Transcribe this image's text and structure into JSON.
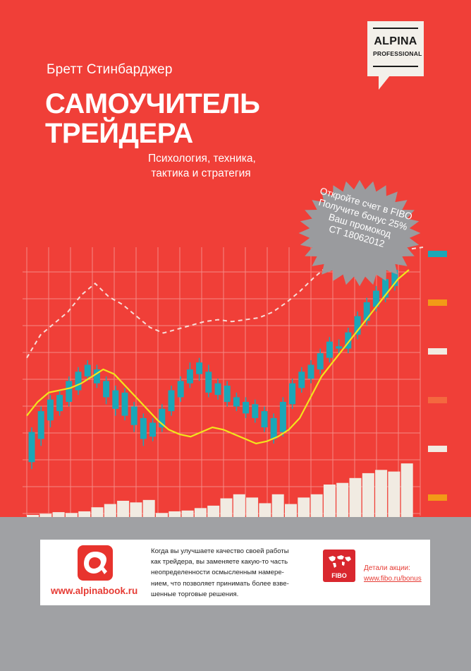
{
  "book": {
    "author": "Бретт Стинбарджер",
    "title_line1": "САМОУЧИТЕЛЬ",
    "title_line2": "ТРЕЙДЕРА",
    "subtitle_line1": "Психология, техника,",
    "subtitle_line2": "тактика и стратегия"
  },
  "publisher_logo": {
    "brand": "ALPINA",
    "sub": "PROFESSIONAL"
  },
  "promo_burst": {
    "line1": "Откройте счет в FIBO",
    "line2": "Получите бонус 25%",
    "line3": "Ваш промокод",
    "line4": "СТ 18062012"
  },
  "info_strip": {
    "site": "www.alpinabook.ru",
    "text_lines": [
      "Когда вы улучшаете качество своей работы",
      "как трейдера, вы заменяете какую-то часть",
      "неопределенности осмысленным намере-",
      "нием, что позволяет принимать более взве-",
      "шенные торговые решения."
    ],
    "fibo_label": "FIBO",
    "details_label": "Детали акции:",
    "details_url": "www.fibo.ru/bonus"
  },
  "colors": {
    "cover_red": "#f03f38",
    "candle_teal": "#1aa7b8",
    "yellow_line": "#f2e51b",
    "volume_beige": "#f1ebe2",
    "burst_grey": "#9a9b9e"
  },
  "chart_data": {
    "type": "candlestick",
    "candles": [
      {
        "o": 17,
        "c": 30,
        "h": 32,
        "l": 14
      },
      {
        "o": 27,
        "c": 39,
        "h": 41,
        "l": 24
      },
      {
        "o": 35,
        "c": 44,
        "h": 46,
        "l": 32
      },
      {
        "o": 39,
        "c": 46,
        "h": 48,
        "l": 37
      },
      {
        "o": 43,
        "c": 52,
        "h": 54,
        "l": 41
      },
      {
        "o": 48,
        "c": 56,
        "h": 58,
        "l": 46
      },
      {
        "o": 54,
        "c": 59,
        "h": 61,
        "l": 52
      },
      {
        "o": 57,
        "c": 51,
        "h": 59,
        "l": 49
      },
      {
        "o": 52,
        "c": 45,
        "h": 54,
        "l": 42
      },
      {
        "o": 48,
        "c": 40,
        "h": 50,
        "l": 37
      },
      {
        "o": 47,
        "c": 37,
        "h": 49,
        "l": 35
      },
      {
        "o": 41,
        "c": 33,
        "h": 43,
        "l": 30
      },
      {
        "o": 36,
        "c": 27,
        "h": 38,
        "l": 24
      },
      {
        "o": 34,
        "c": 28,
        "h": 36,
        "l": 26
      },
      {
        "o": 32,
        "c": 40,
        "h": 42,
        "l": 30
      },
      {
        "o": 39,
        "c": 48,
        "h": 50,
        "l": 37
      },
      {
        "o": 45,
        "c": 52,
        "h": 54,
        "l": 43
      },
      {
        "o": 51,
        "c": 57,
        "h": 60,
        "l": 49
      },
      {
        "o": 55,
        "c": 60,
        "h": 62,
        "l": 52
      },
      {
        "o": 56,
        "c": 47,
        "h": 59,
        "l": 45
      },
      {
        "o": 51,
        "c": 46,
        "h": 53,
        "l": 44
      },
      {
        "o": 50,
        "c": 43,
        "h": 52,
        "l": 41
      },
      {
        "o": 45,
        "c": 41,
        "h": 47,
        "l": 39
      },
      {
        "o": 43,
        "c": 38,
        "h": 45,
        "l": 36
      },
      {
        "o": 42,
        "c": 36,
        "h": 44,
        "l": 34
      },
      {
        "o": 39,
        "c": 32,
        "h": 41,
        "l": 30
      },
      {
        "o": 36,
        "c": 27,
        "h": 38,
        "l": 25
      },
      {
        "o": 30,
        "c": 43,
        "h": 45,
        "l": 28
      },
      {
        "o": 42,
        "c": 51,
        "h": 53,
        "l": 40
      },
      {
        "o": 49,
        "c": 56,
        "h": 58,
        "l": 47
      },
      {
        "o": 53,
        "c": 59,
        "h": 61,
        "l": 51
      },
      {
        "o": 57,
        "c": 64,
        "h": 66,
        "l": 55
      },
      {
        "o": 62,
        "c": 69,
        "h": 71,
        "l": 60
      },
      {
        "o": 67,
        "c": 66,
        "h": 70,
        "l": 64
      },
      {
        "o": 66,
        "c": 73,
        "h": 75,
        "l": 64
      },
      {
        "o": 72,
        "c": 80,
        "h": 82,
        "l": 70
      },
      {
        "o": 78,
        "c": 86,
        "h": 88,
        "l": 76
      },
      {
        "o": 84,
        "c": 91,
        "h": 93,
        "l": 82
      },
      {
        "o": 88,
        "c": 96,
        "h": 98,
        "l": 86
      },
      {
        "o": 93,
        "c": 100,
        "h": 102,
        "l": 91
      }
    ],
    "yellow_line": [
      37,
      43,
      47,
      48,
      49,
      51,
      54,
      57,
      55,
      50,
      45,
      40,
      35,
      31,
      29,
      28,
      30,
      32,
      31,
      29,
      27,
      25,
      26,
      28,
      31,
      36,
      45,
      54,
      60,
      66,
      72,
      78,
      84,
      90,
      96,
      100
    ],
    "dashed_line": [
      42,
      54,
      60,
      66,
      75,
      81,
      74,
      70,
      64,
      58,
      55,
      57,
      59,
      61,
      62,
      61,
      62,
      63,
      66,
      71,
      77,
      84,
      90,
      93,
      94,
      96,
      97,
      98,
      99,
      100
    ],
    "volumes": [
      2,
      4,
      6,
      5,
      7,
      12,
      16,
      20,
      18,
      21,
      5,
      7,
      8,
      11,
      14,
      23,
      28,
      24,
      17,
      28,
      16,
      24,
      28,
      40,
      42,
      48,
      54,
      58,
      56,
      66
    ],
    "side_markers": [
      "teal",
      "orange",
      "beige",
      "orange",
      "beige",
      "orange"
    ]
  }
}
